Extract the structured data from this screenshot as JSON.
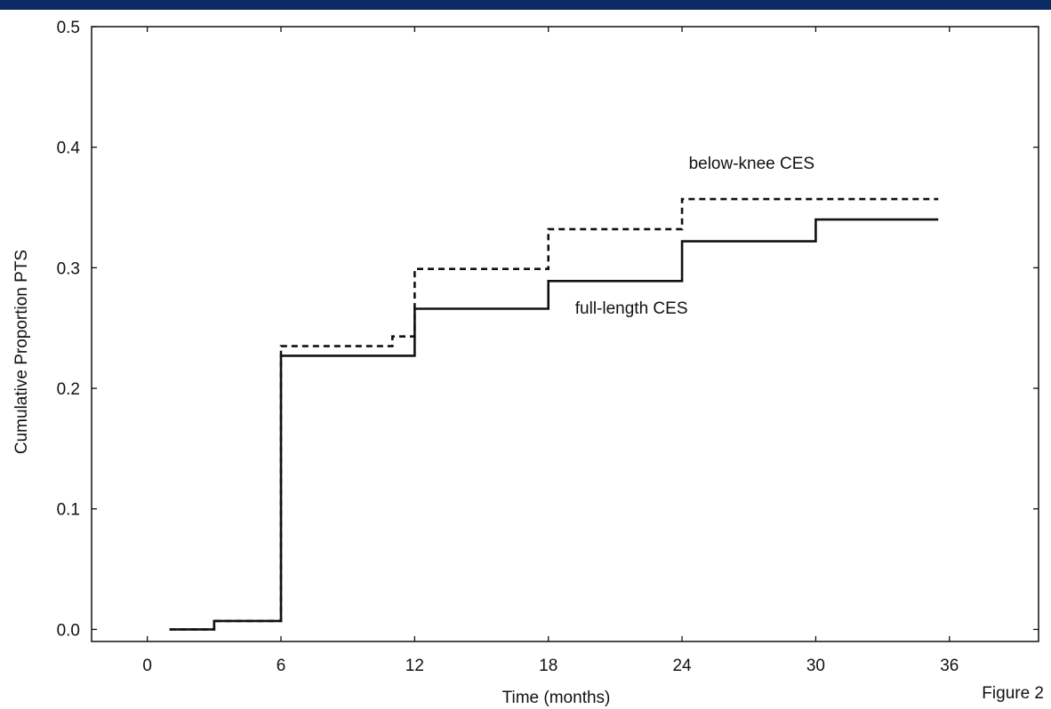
{
  "header": {
    "bar_color": "#0b2a63"
  },
  "figure_label": "Figure 2",
  "chart_data": {
    "type": "line",
    "step": true,
    "xlabel": "Time (months)",
    "ylabel": "Cumulative Proportion PTS",
    "xlim": [
      -2.5,
      40
    ],
    "ylim": [
      -0.01,
      0.5
    ],
    "x_ticks": [
      0,
      6,
      12,
      18,
      24,
      30,
      36
    ],
    "x_tick_labels": [
      "0",
      "6",
      "12",
      "18",
      "24",
      "30",
      "36"
    ],
    "y_ticks": [
      0.0,
      0.1,
      0.2,
      0.3,
      0.4,
      0.5
    ],
    "y_tick_labels": [
      "0.0",
      "0.1",
      "0.2",
      "0.3",
      "0.4",
      "0.5"
    ],
    "grid": false,
    "series": [
      {
        "name": "below-knee CES",
        "style": "dashed",
        "color": "#111111",
        "points": [
          [
            1,
            0.0
          ],
          [
            3,
            0.007
          ],
          [
            6,
            0.235
          ],
          [
            11,
            0.243
          ],
          [
            12,
            0.299
          ],
          [
            18,
            0.332
          ],
          [
            24,
            0.357
          ],
          [
            35.5,
            0.357
          ]
        ]
      },
      {
        "name": "full-length CES",
        "style": "solid",
        "color": "#111111",
        "points": [
          [
            1,
            0.0
          ],
          [
            3,
            0.007
          ],
          [
            6,
            0.227
          ],
          [
            12,
            0.266
          ],
          [
            18,
            0.289
          ],
          [
            24,
            0.322
          ],
          [
            30,
            0.34
          ],
          [
            35.5,
            0.34
          ]
        ]
      }
    ],
    "annotations": [
      {
        "text": "below-knee CES",
        "x": 24.3,
        "y": 0.382
      },
      {
        "text": "full-length CES",
        "x": 19.2,
        "y": 0.262
      }
    ]
  }
}
